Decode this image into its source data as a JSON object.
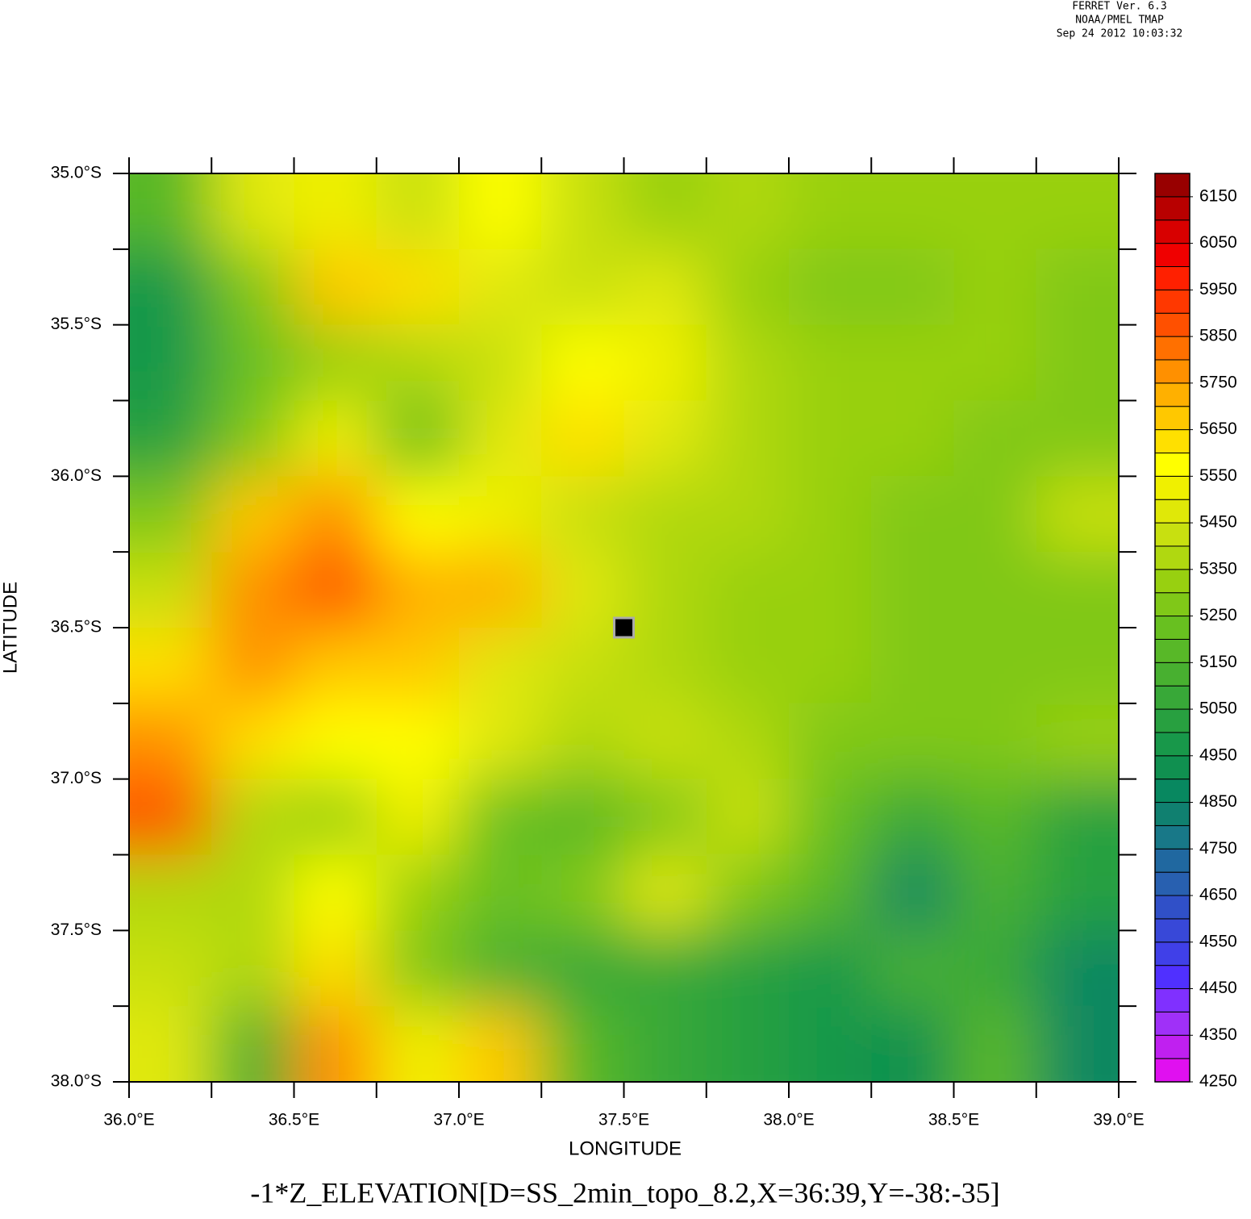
{
  "header": [
    "FERRET Ver. 6.3",
    "NOAA/PMEL TMAP",
    "Sep 24 2012 10:03:32"
  ],
  "chart_data": {
    "type": "heatmap",
    "title": "-1*Z_ELEVATION[D=SS_2min_topo_8.2,X=36:39,Y=-38:-35]",
    "x_label": "LONGITUDE",
    "y_label": "LATITUDE",
    "xlim": [
      36,
      39
    ],
    "ylim": [
      -38,
      -35
    ],
    "xticks": [
      {
        "value": 36,
        "label": "36.0°E"
      },
      {
        "value": 36.5,
        "label": "36.5°E"
      },
      {
        "value": 37,
        "label": "37.0°E"
      },
      {
        "value": 37.5,
        "label": "37.5°E"
      },
      {
        "value": 38,
        "label": "38.0°E"
      },
      {
        "value": 38.5,
        "label": "38.5°E"
      },
      {
        "value": 39,
        "label": "39.0°E"
      }
    ],
    "xminor": [
      36.25,
      36.75,
      37.25,
      37.75,
      38.25,
      38.75
    ],
    "yticks": [
      {
        "value": -35,
        "label": "35.0°S"
      },
      {
        "value": -35.5,
        "label": "35.5°S"
      },
      {
        "value": -36,
        "label": "36.0°S"
      },
      {
        "value": -36.5,
        "label": "36.5°S"
      },
      {
        "value": -37,
        "label": "37.0°S"
      },
      {
        "value": -37.5,
        "label": "37.5°S"
      },
      {
        "value": -38,
        "label": "38.0°S"
      }
    ],
    "yminor": [
      -35.25,
      -35.75,
      -36.25,
      -36.75,
      -37.25,
      -37.75
    ],
    "x": [
      36.125,
      36.375,
      36.625,
      36.875,
      37.125,
      37.375,
      37.625,
      37.875,
      38.125,
      38.375,
      38.625,
      38.875
    ],
    "y": [
      -35.125,
      -35.375,
      -35.625,
      -35.875,
      -36.125,
      -36.375,
      -36.625,
      -36.875,
      -37.125,
      -37.375,
      -37.625,
      -37.875
    ],
    "z": [
      [
        5150,
        5450,
        5500,
        5400,
        5550,
        5400,
        5300,
        5350,
        5300,
        5300,
        5300,
        5300
      ],
      [
        4950,
        5250,
        5650,
        5600,
        5450,
        5400,
        5450,
        5300,
        5250,
        5250,
        5300,
        5250
      ],
      [
        4950,
        5200,
        5300,
        5350,
        5400,
        5550,
        5500,
        5350,
        5300,
        5300,
        5300,
        5250
      ],
      [
        5000,
        5250,
        5500,
        5200,
        5450,
        5600,
        5450,
        5350,
        5300,
        5300,
        5250,
        5250
      ],
      [
        5250,
        5650,
        5750,
        5550,
        5500,
        5400,
        5350,
        5350,
        5300,
        5250,
        5250,
        5400
      ],
      [
        5400,
        5750,
        5850,
        5700,
        5700,
        5450,
        5350,
        5300,
        5300,
        5250,
        5250,
        5250
      ],
      [
        5600,
        5800,
        5650,
        5650,
        5450,
        5400,
        5350,
        5300,
        5300,
        5250,
        5250,
        5250
      ],
      [
        5750,
        5600,
        5550,
        5550,
        5450,
        5350,
        5400,
        5350,
        5250,
        5250,
        5250,
        5300
      ],
      [
        5850,
        5350,
        5300,
        5500,
        5200,
        5150,
        5250,
        5400,
        5200,
        5050,
        5150,
        5000
      ],
      [
        5350,
        5350,
        5550,
        5300,
        5200,
        5250,
        5450,
        5250,
        5150,
        4850,
        5100,
        5000
      ],
      [
        5400,
        5350,
        5600,
        5250,
        5100,
        5050,
        5050,
        5000,
        4950,
        5100,
        5050,
        4850
      ],
      [
        5450,
        5100,
        5800,
        5500,
        5650,
        5150,
        5050,
        5000,
        4950,
        4900,
        5150,
        4850
      ]
    ],
    "zlim": [
      4250,
      6200
    ],
    "zticks": [
      4250,
      4350,
      4450,
      4550,
      4650,
      4750,
      4850,
      4950,
      5050,
      5150,
      5250,
      5350,
      5450,
      5550,
      5650,
      5750,
      5850,
      5950,
      6050,
      6150
    ],
    "colors": [
      "#e010f0",
      "#c020f0",
      "#a030f8",
      "#8030ff",
      "#5030ff",
      "#4040e8",
      "#3848d8",
      "#3050c8",
      "#2860b0",
      "#2068a0",
      "#187888",
      "#108070",
      "#088860",
      "#109050",
      "#18984a",
      "#28a040",
      "#38a838",
      "#48b030",
      "#58b828",
      "#68c020",
      "#80c818",
      "#98d010",
      "#b0d810",
      "#c8e010",
      "#e0e808",
      "#f0f000",
      "#ffff00",
      "#ffe000",
      "#ffc800",
      "#ffb000",
      "#ff9000",
      "#ff7000",
      "#ff5000",
      "#ff3800",
      "#ff2000",
      "#f00000",
      "#d80000",
      "#b80000",
      "#980000"
    ],
    "marker": {
      "x": 37.5,
      "y": -36.5
    }
  }
}
